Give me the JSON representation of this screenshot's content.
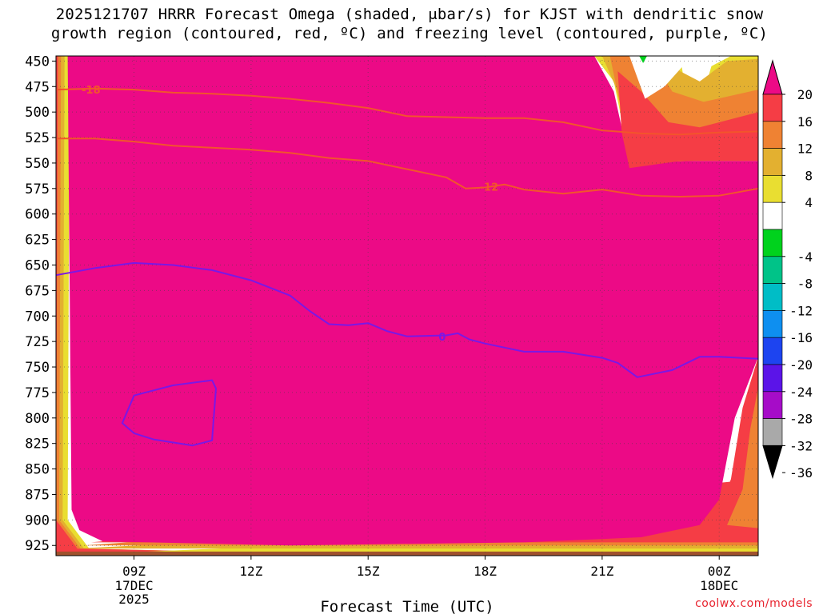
{
  "title": {
    "line1": "2025121707 HRRR Forecast Omega (shaded, μbar/s) for KJST with dendritic snow",
    "line2": "growth region (contoured, red, ºC) and freezing level (contoured, purple, ºC)"
  },
  "credit": "coolwx.com/models",
  "chart_data": {
    "type": "heatmap",
    "title": "2025121707 HRRR Forecast Omega (shaded, μbar/s) for KJST with dendritic snow growth region (contoured, red, ºC) and freezing level (contoured, purple, ºC)",
    "xlabel": "Forecast Time (UTC)",
    "ylabel": "",
    "x_unit": "forecast hours from 2025-12-17 07Z",
    "xlim": [
      0,
      18
    ],
    "ylim": [
      935,
      445
    ],
    "y_inverted": true,
    "x_ticks": [
      {
        "value": 2,
        "label": "09Z",
        "sub": [
          "17DEC",
          "2025"
        ]
      },
      {
        "value": 5,
        "label": "12Z",
        "sub": []
      },
      {
        "value": 8,
        "label": "15Z",
        "sub": []
      },
      {
        "value": 11,
        "label": "18Z",
        "sub": []
      },
      {
        "value": 14,
        "label": "21Z",
        "sub": []
      },
      {
        "value": 17,
        "label": "00Z",
        "sub": [
          "18DEC"
        ]
      }
    ],
    "y_ticks": [
      450,
      475,
      500,
      525,
      550,
      575,
      600,
      625,
      650,
      675,
      700,
      725,
      750,
      775,
      800,
      825,
      850,
      875,
      900,
      925
    ],
    "colorbar": {
      "labels": [
        20,
        16,
        12,
        8,
        4,
        -4,
        -8,
        -12,
        -16,
        -20,
        -24,
        -28,
        -32,
        -36
      ],
      "bins": [
        {
          "range": "above 20",
          "color": "#ec0a86"
        },
        {
          "range": "16 to 20",
          "color": "#f53d45"
        },
        {
          "range": "12 to 16",
          "color": "#ef8233"
        },
        {
          "range": "8 to 12",
          "color": "#e3b030"
        },
        {
          "range": "4 to 8",
          "color": "#e9de31"
        },
        {
          "range": "-4 to 4",
          "color": "#ffffff"
        },
        {
          "range": "-8 to -4",
          "color": "#00d21d"
        },
        {
          "range": "-12 to -8",
          "color": "#00c388"
        },
        {
          "range": "-16 to -12",
          "color": "#00bdc6"
        },
        {
          "range": "-20 to -16",
          "color": "#0e8ff0"
        },
        {
          "range": "-24 to -20",
          "color": "#1d44f0"
        },
        {
          "range": "-28 to -24",
          "color": "#5b14e8"
        },
        {
          "range": "-32 to -28",
          "color": "#a60cc8"
        },
        {
          "range": "-36 to -32",
          "color": "#a9a9a9"
        },
        {
          "range": "below -36",
          "color": "#000000"
        }
      ]
    },
    "ground_color": "#a0522d",
    "series": [
      {
        "name": "-18 C isotherm (dendritic growth region)",
        "color": "#f3542c",
        "label": "-18",
        "label_at": [
          0.9,
          478
        ],
        "points": [
          [
            0,
            478
          ],
          [
            1,
            477
          ],
          [
            2,
            478
          ],
          [
            3,
            481
          ],
          [
            4,
            482
          ],
          [
            5,
            484
          ],
          [
            6,
            487
          ],
          [
            7,
            491
          ],
          [
            8,
            496
          ],
          [
            9,
            504
          ],
          [
            10,
            505
          ],
          [
            11,
            506
          ],
          [
            12,
            506
          ],
          [
            13,
            510
          ],
          [
            14,
            518
          ],
          [
            15,
            521
          ],
          [
            16,
            522
          ],
          [
            17,
            520
          ],
          [
            18,
            519
          ]
        ]
      },
      {
        "name": "-12 C isotherm (dendritic growth region)",
        "color": "#f3542c",
        "label": "-12",
        "label_at": [
          11.1,
          573
        ],
        "points": [
          [
            0,
            526
          ],
          [
            1,
            526
          ],
          [
            2,
            529
          ],
          [
            3,
            533
          ],
          [
            4,
            535
          ],
          [
            5,
            537
          ],
          [
            6,
            540
          ],
          [
            7,
            545
          ],
          [
            8,
            548
          ],
          [
            9,
            556
          ],
          [
            10,
            564
          ],
          [
            10.5,
            575
          ],
          [
            11,
            574
          ],
          [
            11.5,
            571
          ],
          [
            12,
            576
          ],
          [
            13,
            580
          ],
          [
            14,
            576
          ],
          [
            15,
            582
          ],
          [
            16,
            583
          ],
          [
            17,
            582
          ],
          [
            18,
            575
          ]
        ]
      },
      {
        "name": "0 C isotherm (freezing level)",
        "color": "#7a18e6",
        "label": "0",
        "label_at": [
          9.9,
          720
        ],
        "points": [
          [
            0,
            660
          ],
          [
            1,
            653
          ],
          [
            2,
            648
          ],
          [
            3,
            650
          ],
          [
            4,
            655
          ],
          [
            5,
            665
          ],
          [
            6,
            680
          ],
          [
            6.5,
            695
          ],
          [
            7,
            708
          ],
          [
            7.5,
            709
          ],
          [
            8,
            707
          ],
          [
            8.5,
            715
          ],
          [
            9,
            720
          ],
          [
            10,
            719
          ],
          [
            10.3,
            717
          ],
          [
            10.6,
            723
          ],
          [
            11,
            727
          ],
          [
            12,
            735
          ],
          [
            13,
            735
          ],
          [
            14,
            741
          ],
          [
            14.4,
            746
          ],
          [
            14.9,
            760
          ],
          [
            15.8,
            753
          ],
          [
            16.5,
            740
          ],
          [
            17,
            740
          ],
          [
            18,
            742
          ]
        ]
      },
      {
        "name": "0 C closed contour",
        "color": "#7a18e6",
        "label": "",
        "closed": true,
        "points": [
          [
            2,
            778
          ],
          [
            3,
            768
          ],
          [
            4,
            763
          ],
          [
            4.1,
            771
          ],
          [
            4.05,
            797
          ],
          [
            4,
            822
          ],
          [
            3.5,
            827
          ],
          [
            2.5,
            821
          ],
          [
            2,
            815
          ],
          [
            1.7,
            805
          ],
          [
            2,
            778
          ]
        ]
      }
    ]
  }
}
